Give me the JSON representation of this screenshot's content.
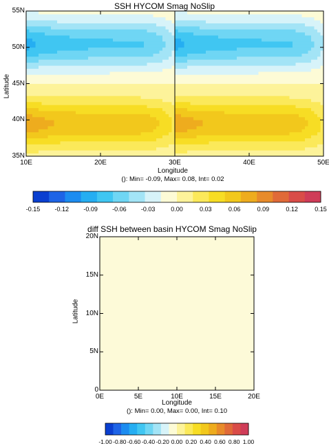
{
  "chart_data": [
    {
      "type": "heatmap",
      "title": "SSH HYCOM Smag NoSlip",
      "xlabel": "Longitude",
      "ylabel": "Latitude",
      "x_ticks": [
        "10E",
        "20E",
        "30E",
        "40E",
        "50E"
      ],
      "y_ticks": [
        "35N",
        "40N",
        "45N",
        "50N",
        "55N"
      ],
      "xlim": [
        10,
        50
      ],
      "ylim": [
        35,
        55
      ],
      "panels": [
        {
          "lon_range": [
            10,
            30
          ],
          "lat_range": [
            35,
            55
          ]
        },
        {
          "lon_range": [
            30,
            50
          ],
          "lat_range": [
            35,
            55
          ]
        }
      ],
      "field": {
        "north_basin": {
          "lat_range": [
            45,
            55
          ],
          "sign": "negative",
          "min_value": -0.09,
          "core_lat": 50.5
        },
        "south_basin": {
          "lat_range": [
            35,
            45
          ],
          "sign": "positive",
          "max_value": 0.08,
          "core_lat": 39.5
        }
      },
      "stats_text": "(): Min= -0.09, Max= 0.08, Int= 0.02",
      "stats": {
        "min": -0.09,
        "max": 0.08,
        "interval": 0.02
      },
      "colorbar": {
        "levels": [
          -0.15,
          -0.12,
          -0.09,
          -0.06,
          -0.03,
          0.0,
          0.03,
          0.06,
          0.09,
          0.12,
          0.15
        ],
        "tick_labels": [
          "-0.15",
          "-0.12",
          "-0.09",
          "-0.06",
          "-0.03",
          "0.00",
          "0.03",
          "0.06",
          "0.09",
          "0.12",
          "0.15"
        ],
        "colors": [
          "#0a3fd0",
          "#1e64e6",
          "#1c8cf0",
          "#25aef2",
          "#40c6f2",
          "#6fd6f4",
          "#a3e4f6",
          "#d7f3f9",
          "#fdfbd6",
          "#fdf39a",
          "#fbe95a",
          "#f7dd24",
          "#f2c81c",
          "#eeac1e",
          "#e88b2a",
          "#e06a38",
          "#d94c48",
          "#cf3c58"
        ]
      }
    },
    {
      "type": "heatmap",
      "title": "diff SSH between basin HYCOM Smag NoSlip",
      "xlabel": "Longitude",
      "ylabel": "Latitude",
      "x_ticks": [
        "0E",
        "5E",
        "10E",
        "15E",
        "20E"
      ],
      "y_ticks": [
        "0",
        "5N",
        "10N",
        "15N",
        "20N"
      ],
      "xlim": [
        0,
        20
      ],
      "ylim": [
        0,
        20
      ],
      "field": {
        "uniform_value": 0.0,
        "fill_color": "#fdfad8"
      },
      "stats_text": "(): Min= 0.00, Max= 0.00, Int= 0.10",
      "stats": {
        "min": 0.0,
        "max": 0.0,
        "interval": 0.1
      },
      "colorbar": {
        "levels": [
          -1.0,
          -0.8,
          -0.6,
          -0.4,
          -0.2,
          0.0,
          0.2,
          0.4,
          0.6,
          0.8,
          1.0
        ],
        "tick_labels": [
          "-1.00",
          "-0.80",
          "-0.60",
          "-0.40",
          "-0.20",
          "0.00",
          "0.20",
          "0.40",
          "0.60",
          "0.80",
          "1.00"
        ],
        "colors": [
          "#0a3fd0",
          "#1e64e6",
          "#1c8cf0",
          "#25aef2",
          "#40c6f2",
          "#6fd6f4",
          "#a3e4f6",
          "#d7f3f9",
          "#fdfbd6",
          "#fdf39a",
          "#fbe95a",
          "#f7dd24",
          "#f2c81c",
          "#eeac1e",
          "#e88b2a",
          "#e06a38",
          "#d94c48",
          "#cf3c58"
        ]
      }
    }
  ]
}
